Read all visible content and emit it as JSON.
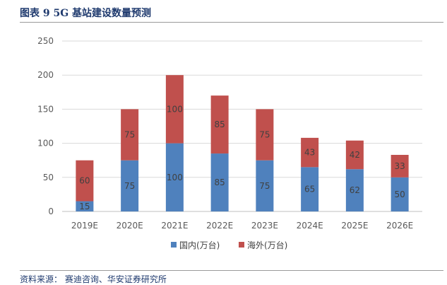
{
  "figure": {
    "title": "图表 9 5G 基站建设数量预测",
    "source": "资料来源：  赛迪咨询、华安证券研究所"
  },
  "chart_data": {
    "type": "bar",
    "stacked": true,
    "categories": [
      "2019E",
      "2020E",
      "2021E",
      "2022E",
      "2023E",
      "2024E",
      "2025E",
      "2026E"
    ],
    "series": [
      {
        "name": "国内(万台)",
        "color": "#4f81bd",
        "values": [
          15,
          75,
          100,
          85,
          75,
          65,
          62,
          50
        ]
      },
      {
        "name": "海外(万台)",
        "color": "#c0504d",
        "values": [
          60,
          75,
          100,
          85,
          75,
          43,
          42,
          33
        ]
      }
    ],
    "ylim": [
      0,
      250
    ],
    "yticks": [
      0,
      50,
      100,
      150,
      200,
      250
    ],
    "grid": true,
    "legend": "bottom",
    "data_labels": true
  }
}
